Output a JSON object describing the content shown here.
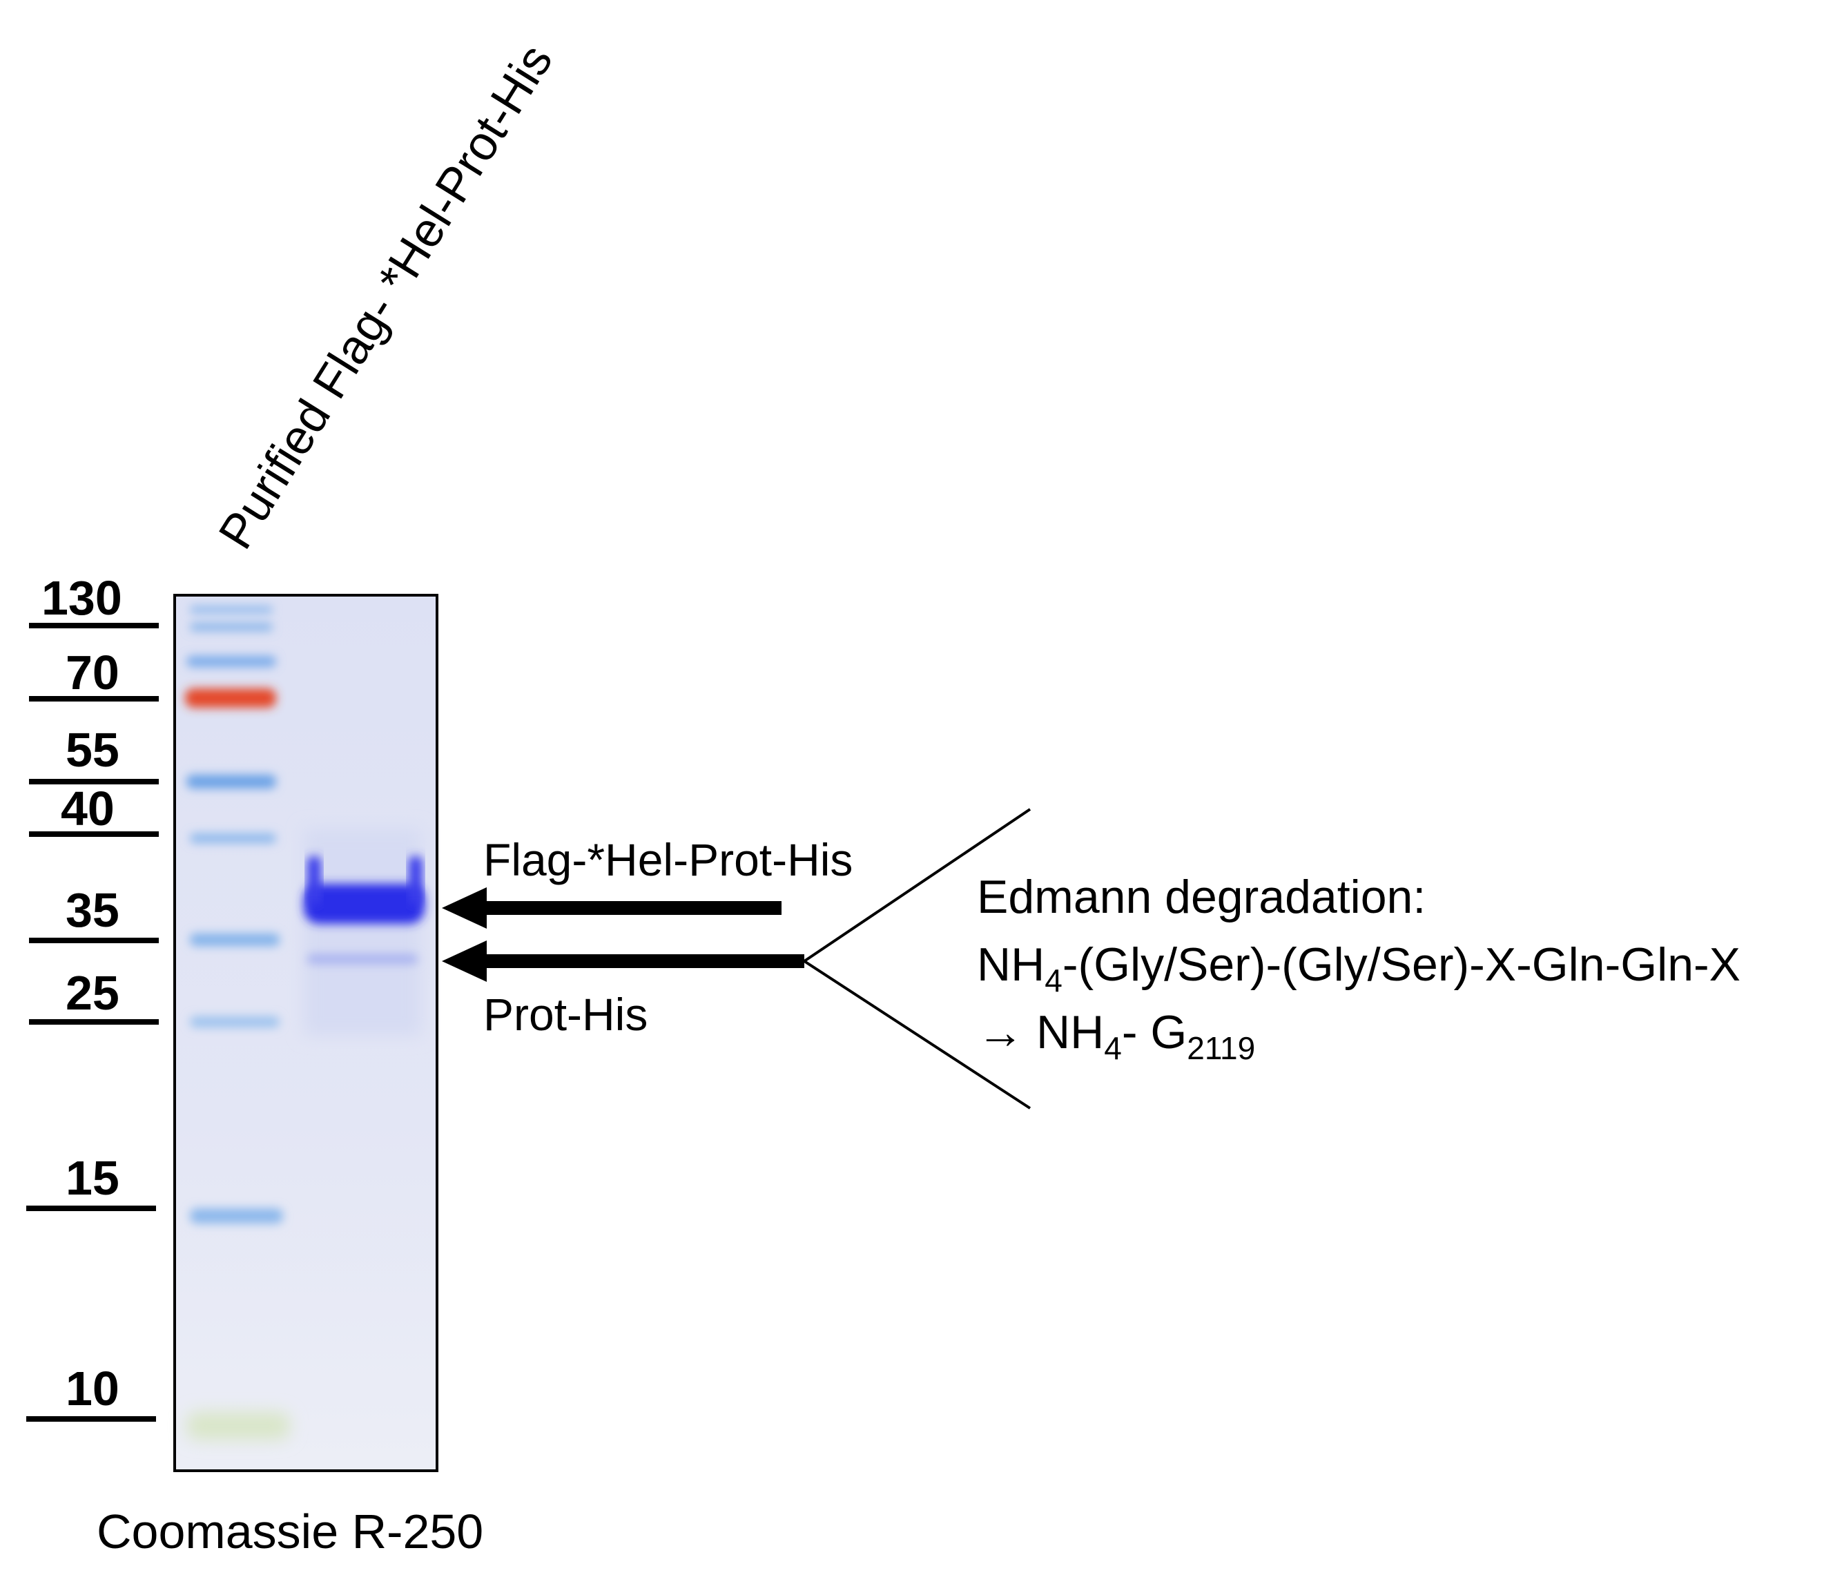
{
  "lane_header": "Purified Flag- *Hel-Prot-His",
  "stain_label": "Coomassie R-250",
  "markers": [
    {
      "label": "130",
      "kda": 130
    },
    {
      "label": "70",
      "kda": 70
    },
    {
      "label": "55",
      "kda": 55
    },
    {
      "label": "40",
      "kda": 40
    },
    {
      "label": "35",
      "kda": 35
    },
    {
      "label": "25",
      "kda": 25
    },
    {
      "label": "15",
      "kda": 15
    },
    {
      "label": "10",
      "kda": 10
    }
  ],
  "bands": {
    "upper_label": "Flag-*Hel-Prot-His",
    "lower_label": "Prot-His"
  },
  "edman": {
    "title": "Edmann degradation:",
    "line1_a": "NH",
    "line1_sub": "4",
    "line1_b": "-(Gly/Ser)-(Gly/Ser)-X-Gln-Gln-X",
    "arrow": "→",
    "line2_a": "NH",
    "line2_sub": "4",
    "line2_b": "- G",
    "line2_sub2": "2119"
  },
  "colors": {
    "gel_bg": "#dfe3f5",
    "ladder_blue": "#7fb0e6",
    "ladder_red": "#e4492c",
    "sample_band": "#2a2ee8"
  }
}
